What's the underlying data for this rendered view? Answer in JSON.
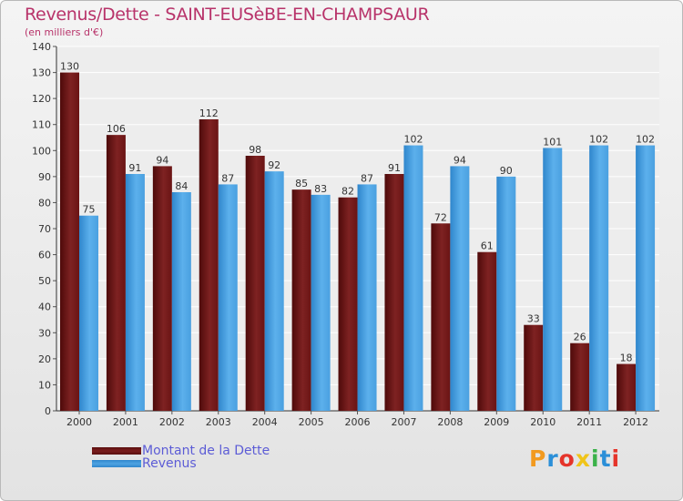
{
  "chart_data": {
    "type": "bar",
    "title": "Revenus/Dette - SAINT-EUSèBE-EN-CHAMPSAUR",
    "subtitle": "(en milliers d'€)",
    "categories": [
      "2000",
      "2001",
      "2002",
      "2003",
      "2004",
      "2005",
      "2006",
      "2007",
      "2008",
      "2009",
      "2010",
      "2011",
      "2012"
    ],
    "series": [
      {
        "name": "Montant de la Dette",
        "color": "#7a1d1d",
        "values": [
          130,
          106,
          94,
          112,
          98,
          85,
          82,
          91,
          72,
          61,
          33,
          26,
          18
        ]
      },
      {
        "name": "Revenus",
        "color": "#4ea3e2",
        "values": [
          75,
          91,
          84,
          87,
          92,
          83,
          87,
          102,
          94,
          90,
          101,
          102,
          102
        ]
      }
    ],
    "ylim": [
      0,
      140
    ],
    "yticks": [
      0,
      10,
      20,
      30,
      40,
      50,
      60,
      70,
      80,
      90,
      100,
      110,
      120,
      130,
      140
    ],
    "grid": true,
    "legend_position": "bottom-left",
    "data_labels": true
  },
  "branding": {
    "logo_text": "Proxiti",
    "logo_colors": [
      "#f29a1f",
      "#2b8fd8",
      "#e5342a",
      "#f0c419",
      "#3bb24a",
      "#2b8fd8",
      "#e5342a"
    ]
  }
}
